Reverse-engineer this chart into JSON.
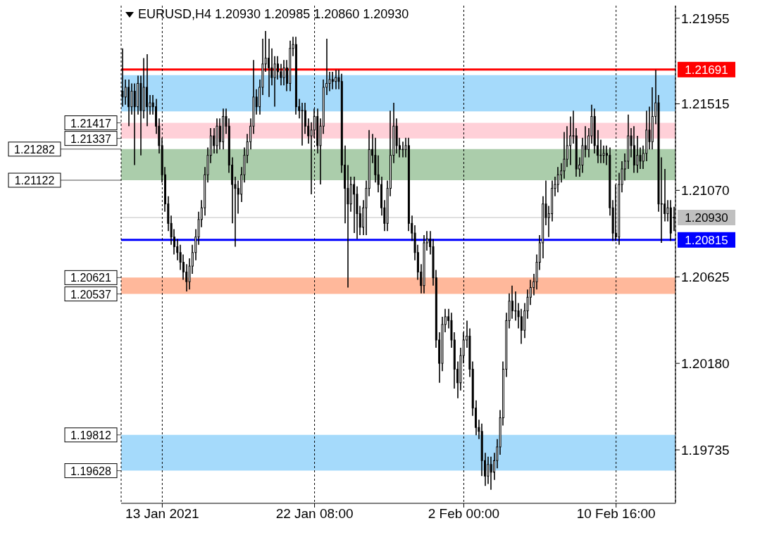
{
  "chart_data": {
    "type": "candlestick",
    "title": "EURUSD,H4  1.20930 1.20985 1.20860 1.20930",
    "color": "#000000",
    "categories": [
      null,
      null,
      null,
      null,
      null,
      null,
      null,
      null,
      null,
      null,
      null,
      null,
      null,
      "13 Jan 2021",
      null,
      null,
      null,
      null,
      null,
      null,
      null,
      null,
      null,
      null,
      null,
      null,
      null,
      null,
      null,
      null,
      null,
      null,
      null,
      null,
      null,
      null,
      null,
      null,
      null,
      null,
      null,
      null,
      null,
      null,
      null,
      null,
      null,
      null,
      null,
      null,
      null,
      null,
      null,
      null,
      null,
      null,
      null,
      null,
      null,
      null,
      null,
      null,
      null,
      "22 Jan 08:00",
      null,
      null,
      null,
      null,
      null,
      null,
      null,
      null,
      null,
      null,
      null,
      null,
      null,
      null,
      null,
      null,
      null,
      null,
      null,
      null,
      null,
      null,
      null,
      null,
      null,
      null,
      null,
      null,
      null,
      null,
      null,
      null,
      null,
      null,
      null,
      null,
      null,
      null,
      null,
      null,
      null,
      null,
      null,
      null,
      null,
      null,
      null,
      null,
      "2 Feb 00:00",
      null,
      null,
      null,
      null,
      null,
      null,
      null,
      null,
      null,
      null,
      null,
      null,
      null,
      null,
      null,
      null,
      null,
      null,
      null,
      null,
      null,
      null,
      null,
      null,
      null,
      null,
      null,
      null,
      null,
      null,
      null,
      null,
      null,
      null,
      null,
      null,
      null,
      null,
      null,
      null,
      null,
      null,
      null,
      null,
      null,
      null,
      null,
      null,
      null,
      "10 Feb 16:00",
      null,
      null,
      null,
      null,
      null,
      null,
      null,
      null,
      null,
      null,
      null,
      null,
      null,
      null,
      null,
      null,
      null,
      null,
      null
    ],
    "ohlc": [
      [
        1.2158,
        1.218,
        1.215,
        1.2155
      ],
      [
        1.2155,
        1.2164,
        1.2151,
        1.216
      ],
      [
        1.216,
        1.2164,
        1.214,
        1.215
      ],
      [
        1.215,
        1.2162,
        1.2146,
        1.2158
      ],
      [
        1.2158,
        1.2162,
        1.212,
        1.215
      ],
      [
        1.215,
        1.2166,
        1.2146,
        1.2162
      ],
      [
        1.2162,
        1.2166,
        1.2125,
        1.2148
      ],
      [
        1.2148,
        1.2175,
        1.2144,
        1.216
      ],
      [
        1.216,
        1.2177,
        1.214,
        1.215
      ],
      [
        1.215,
        1.2156,
        1.2146,
        1.2152
      ],
      [
        1.2152,
        1.2156,
        1.2146,
        1.215
      ],
      [
        1.215,
        1.2154,
        1.2136,
        1.214
      ],
      [
        1.214,
        1.2144,
        1.2126,
        1.213
      ],
      [
        1.213,
        1.2134,
        1.2111,
        1.2115
      ],
      [
        1.2115,
        1.2119,
        1.2096,
        1.21
      ],
      [
        1.21,
        1.2104,
        1.2086,
        1.209
      ],
      [
        1.209,
        1.2094,
        1.2079,
        1.2083
      ],
      [
        1.2083,
        1.2087,
        1.2074,
        1.2078
      ],
      [
        1.2078,
        1.2082,
        1.2071,
        1.2075
      ],
      [
        1.2075,
        1.2079,
        1.2066,
        1.207
      ],
      [
        1.207,
        1.2074,
        1.2061,
        1.2065
      ],
      [
        1.2065,
        1.2069,
        1.2055,
        1.206
      ],
      [
        1.206,
        1.2072,
        1.2056,
        1.2068
      ],
      [
        1.2068,
        1.2079,
        1.2064,
        1.2075
      ],
      [
        1.2075,
        1.2087,
        1.2071,
        1.2083
      ],
      [
        1.2083,
        1.2096,
        1.2079,
        1.2092
      ],
      [
        1.2092,
        1.2102,
        1.2088,
        1.2098
      ],
      [
        1.2098,
        1.2119,
        1.2094,
        1.2115
      ],
      [
        1.2115,
        1.2129,
        1.2111,
        1.2125
      ],
      [
        1.2125,
        1.2139,
        1.2121,
        1.2135
      ],
      [
        1.2135,
        1.2139,
        1.2126,
        1.213
      ],
      [
        1.213,
        1.2144,
        1.2126,
        1.214
      ],
      [
        1.214,
        1.2144,
        1.2128,
        1.2132
      ],
      [
        1.2132,
        1.2149,
        1.2128,
        1.2145
      ],
      [
        1.2145,
        1.2149,
        1.2136,
        1.214
      ],
      [
        1.214,
        1.2144,
        1.2116,
        1.212
      ],
      [
        1.212,
        1.2124,
        1.209,
        1.211
      ],
      [
        1.211,
        1.2114,
        1.2078,
        1.2108
      ],
      [
        1.2108,
        1.2112,
        1.2095,
        1.2105
      ],
      [
        1.2105,
        1.2119,
        1.2101,
        1.2115
      ],
      [
        1.2115,
        1.2129,
        1.2111,
        1.2125
      ],
      [
        1.2125,
        1.2136,
        1.2121,
        1.2132
      ],
      [
        1.2132,
        1.2144,
        1.2128,
        1.214
      ],
      [
        1.214,
        1.2174,
        1.2136,
        1.2155
      ],
      [
        1.2155,
        1.2159,
        1.2146,
        1.215
      ],
      [
        1.215,
        1.2164,
        1.2146,
        1.216
      ],
      [
        1.216,
        1.2185,
        1.2156,
        1.2172
      ],
      [
        1.2172,
        1.2189,
        1.2168,
        1.2175
      ],
      [
        1.2175,
        1.2185,
        1.2155,
        1.217
      ],
      [
        1.217,
        1.218,
        1.2161,
        1.2165
      ],
      [
        1.2165,
        1.2176,
        1.215,
        1.2172
      ],
      [
        1.2172,
        1.2176,
        1.2164,
        1.2168
      ],
      [
        1.2168,
        1.2172,
        1.2161,
        1.2165
      ],
      [
        1.2165,
        1.2174,
        1.2161,
        1.217
      ],
      [
        1.217,
        1.2174,
        1.2158,
        1.2162
      ],
      [
        1.2162,
        1.2184,
        1.2158,
        1.218
      ],
      [
        1.218,
        1.2186,
        1.2176,
        1.2182
      ],
      [
        1.2182,
        1.2186,
        1.2146,
        1.215
      ],
      [
        1.215,
        1.2154,
        1.2144,
        1.2148
      ],
      [
        1.2148,
        1.2152,
        1.213,
        1.2148
      ],
      [
        1.2148,
        1.2152,
        1.2136,
        1.214
      ],
      [
        1.214,
        1.2144,
        1.2131,
        1.2135
      ],
      [
        1.2135,
        1.2142,
        1.2105,
        1.2138
      ],
      [
        1.2138,
        1.2149,
        1.2134,
        1.2145
      ],
      [
        1.2145,
        1.2149,
        1.2126,
        1.213
      ],
      [
        1.213,
        1.2144,
        1.211,
        1.214
      ],
      [
        1.214,
        1.2164,
        1.2136,
        1.216
      ],
      [
        1.216,
        1.2185,
        1.2156,
        1.2162
      ],
      [
        1.2162,
        1.2168,
        1.2158,
        1.2164
      ],
      [
        1.2164,
        1.2168,
        1.2159,
        1.2163
      ],
      [
        1.2163,
        1.2169,
        1.2159,
        1.2165
      ],
      [
        1.2165,
        1.2169,
        1.2159,
        1.2163
      ],
      [
        1.2163,
        1.2167,
        1.2116,
        1.212
      ],
      [
        1.212,
        1.213,
        1.209,
        1.2108
      ],
      [
        1.2108,
        1.212,
        1.2057,
        1.21
      ],
      [
        1.21,
        1.2114,
        1.2096,
        1.211
      ],
      [
        1.211,
        1.2114,
        1.2085,
        1.2105
      ],
      [
        1.2105,
        1.2109,
        1.2082,
        1.2095
      ],
      [
        1.2095,
        1.2099,
        1.2084,
        1.2088
      ],
      [
        1.2088,
        1.2102,
        1.2084,
        1.2098
      ],
      [
        1.2098,
        1.2112,
        1.2084,
        1.2108
      ],
      [
        1.2108,
        1.2138,
        1.2104,
        1.2128
      ],
      [
        1.2128,
        1.2136,
        1.2121,
        1.2125
      ],
      [
        1.2125,
        1.2134,
        1.2111,
        1.2115
      ],
      [
        1.2115,
        1.2125,
        1.2106,
        1.211
      ],
      [
        1.211,
        1.2114,
        1.2094,
        1.2098
      ],
      [
        1.2098,
        1.2102,
        1.2086,
        1.209
      ],
      [
        1.209,
        1.2112,
        1.2086,
        1.2108
      ],
      [
        1.2108,
        1.2148,
        1.2104,
        1.2125
      ],
      [
        1.2125,
        1.2152,
        1.2121,
        1.214
      ],
      [
        1.214,
        1.2144,
        1.2126,
        1.213
      ],
      [
        1.213,
        1.2134,
        1.2124,
        1.2128
      ],
      [
        1.2128,
        1.2132,
        1.2124,
        1.2128
      ],
      [
        1.2128,
        1.2134,
        1.2124,
        1.213
      ],
      [
        1.213,
        1.2134,
        1.2086,
        1.209
      ],
      [
        1.209,
        1.2094,
        1.2081,
        1.2085
      ],
      [
        1.2085,
        1.2089,
        1.2071,
        1.2075
      ],
      [
        1.2075,
        1.2079,
        1.2061,
        1.2065
      ],
      [
        1.2065,
        1.2069,
        1.2054,
        1.2058
      ],
      [
        1.2058,
        1.2084,
        1.2054,
        1.208
      ],
      [
        1.208,
        1.2086,
        1.2076,
        1.2082
      ],
      [
        1.2082,
        1.2086,
        1.2074,
        1.2078
      ],
      [
        1.2078,
        1.2082,
        1.2058,
        1.2062
      ],
      [
        1.2062,
        1.2066,
        1.2026,
        1.203
      ],
      [
        1.203,
        1.2034,
        1.2008,
        1.2018
      ],
      [
        1.2018,
        1.2042,
        1.2014,
        1.2038
      ],
      [
        1.2038,
        1.2046,
        1.2034,
        1.2042
      ],
      [
        1.2042,
        1.2046,
        1.2036,
        1.204
      ],
      [
        1.204,
        1.2044,
        1.2026,
        1.203
      ],
      [
        1.203,
        1.2034,
        1.2005,
        1.2015
      ],
      [
        1.2015,
        1.2019,
        1.2,
        1.2008
      ],
      [
        1.2008,
        1.2026,
        1.2004,
        1.2022
      ],
      [
        1.2022,
        1.2034,
        1.2018,
        1.203
      ],
      [
        1.203,
        1.204,
        1.2026,
        1.2032
      ],
      [
        1.2032,
        1.2036,
        1.2011,
        1.2015
      ],
      [
        1.2015,
        1.2019,
        1.1991,
        1.1995
      ],
      [
        1.1995,
        1.1999,
        1.1981,
        1.1985
      ],
      [
        1.1985,
        1.1989,
        1.1979,
        1.1983
      ],
      [
        1.1983,
        1.1987,
        1.196,
        1.1968
      ],
      [
        1.1968,
        1.1972,
        1.1955,
        1.196
      ],
      [
        1.196,
        1.197,
        1.1956,
        1.1966
      ],
      [
        1.1966,
        1.197,
        1.1953,
        1.1962
      ],
      [
        1.1962,
        1.1972,
        1.1958,
        1.1968
      ],
      [
        1.1968,
        1.1979,
        1.1964,
        1.1975
      ],
      [
        1.1975,
        1.1994,
        1.1971,
        1.199
      ],
      [
        1.199,
        1.2019,
        1.1986,
        1.2015
      ],
      [
        1.2015,
        1.2044,
        1.2011,
        1.204
      ],
      [
        1.204,
        1.2054,
        1.2036,
        1.205
      ],
      [
        1.205,
        1.2058,
        1.2041,
        1.2045
      ],
      [
        1.2045,
        1.2055,
        1.204,
        1.2045
      ],
      [
        1.2045,
        1.2049,
        1.2036,
        1.2042
      ],
      [
        1.2042,
        1.2046,
        1.2028,
        1.2035
      ],
      [
        1.2035,
        1.2049,
        1.2031,
        1.2045
      ],
      [
        1.2045,
        1.2056,
        1.2041,
        1.2052
      ],
      [
        1.2052,
        1.2061,
        1.2048,
        1.2057
      ],
      [
        1.2057,
        1.2064,
        1.2053,
        1.206
      ],
      [
        1.206,
        1.2074,
        1.2056,
        1.207
      ],
      [
        1.207,
        1.2084,
        1.2066,
        1.208
      ],
      [
        1.208,
        1.2104,
        1.2072,
        1.21
      ],
      [
        1.21,
        1.2112,
        1.2089,
        1.2093
      ],
      [
        1.2093,
        1.2099,
        1.2083,
        1.2095
      ],
      [
        1.2095,
        1.2112,
        1.2091,
        1.2108
      ],
      [
        1.2108,
        1.2114,
        1.2104,
        1.211
      ],
      [
        1.211,
        1.2119,
        1.2106,
        1.2115
      ],
      [
        1.2115,
        1.2121,
        1.2111,
        1.2117
      ],
      [
        1.2117,
        1.2137,
        1.2113,
        1.2123
      ],
      [
        1.2123,
        1.214,
        1.2119,
        1.213
      ],
      [
        1.213,
        1.2145,
        1.212,
        1.2135
      ],
      [
        1.2135,
        1.2148,
        1.2131,
        1.2135
      ],
      [
        1.2135,
        1.2139,
        1.2114,
        1.2118
      ],
      [
        1.2118,
        1.2124,
        1.2114,
        1.212
      ],
      [
        1.212,
        1.2134,
        1.2116,
        1.213
      ],
      [
        1.213,
        1.214,
        1.2124,
        1.2128
      ],
      [
        1.2128,
        1.2139,
        1.2124,
        1.2135
      ],
      [
        1.2135,
        1.2151,
        1.2131,
        1.2145
      ],
      [
        1.2145,
        1.2149,
        1.2126,
        1.213
      ],
      [
        1.213,
        1.2138,
        1.2121,
        1.2125
      ],
      [
        1.2125,
        1.2133,
        1.2121,
        1.2125
      ],
      [
        1.2125,
        1.213,
        1.2121,
        1.2126
      ],
      [
        1.2126,
        1.213,
        1.212,
        1.2125
      ],
      [
        1.2125,
        1.2129,
        1.2094,
        1.2098
      ],
      [
        1.2098,
        1.2102,
        1.2081,
        1.2085
      ],
      [
        1.2085,
        1.211,
        1.2081,
        1.2083
      ],
      [
        1.2083,
        1.2116,
        1.2079,
        1.211
      ],
      [
        1.211,
        1.2122,
        1.2106,
        1.2118
      ],
      [
        1.2118,
        1.2126,
        1.2112,
        1.2122
      ],
      [
        1.2122,
        1.2146,
        1.2118,
        1.2135
      ],
      [
        1.2135,
        1.2139,
        1.2124,
        1.213
      ],
      [
        1.213,
        1.214,
        1.2116,
        1.212
      ],
      [
        1.212,
        1.2135,
        1.2116,
        1.2125
      ],
      [
        1.2125,
        1.2129,
        1.2118,
        1.2122
      ],
      [
        1.2122,
        1.213,
        1.2118,
        1.2126
      ],
      [
        1.2126,
        1.2148,
        1.2122,
        1.2138
      ],
      [
        1.2138,
        1.215,
        1.2128,
        1.2132
      ],
      [
        1.2132,
        1.216,
        1.2128,
        1.2145
      ],
      [
        1.2145,
        1.2169,
        1.2141,
        1.2152
      ],
      [
        1.2152,
        1.2156,
        1.2096,
        1.21
      ],
      [
        1.21,
        1.2124,
        1.208,
        1.21
      ],
      [
        1.21,
        1.2118,
        1.2091,
        1.2095
      ],
      [
        1.2095,
        1.2102,
        1.2091,
        1.2098
      ],
      [
        1.2098,
        1.2102,
        1.2081,
        1.2085
      ],
      [
        1.2093,
        1.20985,
        1.2086,
        1.2093
      ]
    ],
    "ylim": [
      1.1946,
      1.2202
    ],
    "yticks": [
      1.19735,
      {
        "value": 1.2018,
        "label": "1.20180"
      },
      1.20625,
      {
        "value": 1.2107,
        "label": "1.21070"
      },
      1.21515,
      1.21955
    ],
    "grid": "x",
    "ref_lines": [
      {
        "axis": "y",
        "value": 1.21691,
        "label": "1.21691",
        "color": "#ff0000"
      },
      {
        "axis": "y",
        "value": 1.2093,
        "label": "1.20930",
        "color": "#c0c0c0"
      },
      {
        "axis": "y",
        "value": 1.20815,
        "label": "1.20815",
        "color": "#0000ff"
      }
    ],
    "bands": [
      {
        "axis": "y",
        "from": 1.21476,
        "to": 1.21662,
        "color": "#87cefa"
      },
      {
        "axis": "y",
        "from": 1.21337,
        "to": 1.21417,
        "color": "#ffc0cb",
        "label": "1.21417\n1.21337"
      },
      {
        "axis": "y",
        "from": 1.21122,
        "to": 1.21282,
        "color": "#8fbc8f",
        "label": "1.21282\n1.21122"
      },
      {
        "axis": "y",
        "from": 1.20537,
        "to": 1.20621,
        "color": "#ffa07a",
        "label": "1.20621\n1.20537"
      },
      {
        "axis": "y",
        "from": 1.19628,
        "to": 1.19812,
        "color": "#87cefa",
        "label": "1.19812\n1.19628"
      }
    ]
  }
}
